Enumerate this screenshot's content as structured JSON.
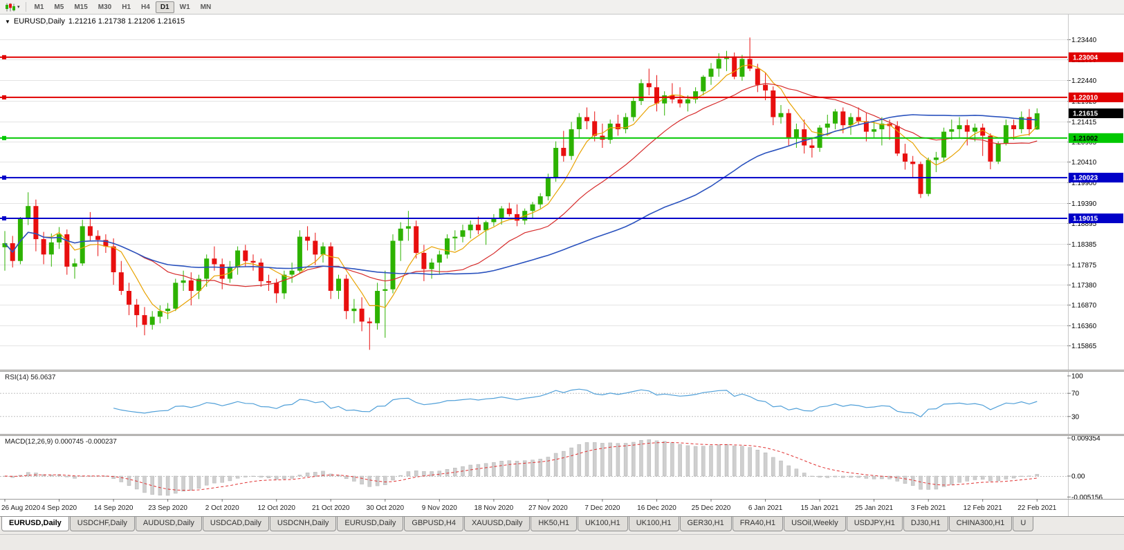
{
  "toolbar": {
    "timeframes": [
      "M1",
      "M5",
      "M15",
      "M30",
      "H1",
      "H4",
      "D1",
      "W1",
      "MN"
    ],
    "active_timeframe": "D1"
  },
  "chart": {
    "marker": "▼",
    "title": "EURUSD,Daily",
    "ohlc": "1.21216 1.21738 1.21206 1.21615"
  },
  "indicators": {
    "rsi": {
      "label": "RSI(14) 56.0637",
      "period": 14,
      "value": 56.0637
    },
    "macd": {
      "label": "MACD(12,26,9) 0.000745 -0.000237",
      "main": 0.000745,
      "signal": -0.000237
    }
  },
  "chart_data": {
    "type": "candlestick",
    "symbol": "EURUSD",
    "period": "Daily",
    "last": {
      "open": 1.21216,
      "high": 1.21738,
      "low": 1.21206,
      "close": 1.21615
    },
    "current_price_label": "1.21615",
    "price_axis": {
      "top": 1.2406,
      "bottom": 1.1527,
      "ticks": [
        1.2344,
        1.2295,
        1.2244,
        1.21925,
        1.21415,
        1.20905,
        1.2041,
        1.199,
        1.1939,
        1.18895,
        1.18385,
        1.17875,
        1.1738,
        1.1687,
        1.1636,
        1.15865
      ],
      "tick_labels": [
        "1.23440",
        "1.22950",
        "1.22440",
        "1.21925",
        "1.21415",
        "1.20905",
        "1.20410",
        "1.19900",
        "1.19390",
        "1.18895",
        "1.18385",
        "1.17875",
        "1.17380",
        "1.16870",
        "1.16360",
        "1.15865"
      ]
    },
    "hlines": [
      {
        "price": 1.23004,
        "label": "1.23004",
        "color": "#e00000",
        "text_color": "#ffffff"
      },
      {
        "price": 1.2201,
        "label": "1.22010",
        "color": "#e00000",
        "text_color": "#ffffff"
      },
      {
        "price": 1.21002,
        "label": "1.21002",
        "color": "#00c800",
        "text_color": "#000000"
      },
      {
        "price": 1.20023,
        "label": "1.20023",
        "color": "#0000c8",
        "text_color": "#ffffff"
      },
      {
        "price": 1.19015,
        "label": "1.19015",
        "color": "#0000c8",
        "text_color": "#ffffff"
      }
    ],
    "moving_averages": [
      {
        "name": "fast",
        "window": 6,
        "color": "#e8a200"
      },
      {
        "name": "mid",
        "window": 18,
        "color": "#d62a2a"
      },
      {
        "name": "slow",
        "window": 48,
        "color": "#2a52be"
      }
    ],
    "rsi_axis": [
      {
        "v": 100,
        "label": "100"
      },
      {
        "v": 70,
        "label": "70"
      },
      {
        "v": 30,
        "label": "30"
      }
    ],
    "rsi_levels": [
      70,
      30
    ],
    "macd_axis": [
      {
        "v": 0.009354,
        "label": "0.009354"
      },
      {
        "v": 0,
        "label": "0.00"
      },
      {
        "v": -0.005156,
        "label": "-0.005156"
      }
    ],
    "colors": {
      "up": "#2db200",
      "down": "#e80f0f",
      "grid": "#e3e3e3",
      "rsi_line": "#4f9fd8",
      "macd_hist": "#cfcfcf",
      "macd_hist_stroke": "#b4b4b4",
      "macd_signal": "#e03030",
      "current_price_bg": "#000000",
      "current_price_text": "#ffffff",
      "axis_text": "#000000",
      "date_text": "#222222"
    },
    "x_labels": [
      "26 Aug 2020",
      "4 Sep 2020",
      "14 Sep 2020",
      "23 Sep 2020",
      "2 Oct 2020",
      "12 Oct 2020",
      "21 Oct 2020",
      "30 Oct 2020",
      "9 Nov 2020",
      "18 Nov 2020",
      "27 Nov 2020",
      "7 Dec 2020",
      "16 Dec 2020",
      "25 Dec 2020",
      "6 Jan 2021",
      "15 Jan 2021",
      "25 Jan 2021",
      "3 Feb 2021",
      "12 Feb 2021",
      "22 Feb 2021"
    ],
    "x_label_step": 7,
    "candles": [
      [
        1.183,
        1.187,
        1.1772,
        1.184
      ],
      [
        1.184,
        1.1858,
        1.178,
        1.1796
      ],
      [
        1.1796,
        1.1905,
        1.1788,
        1.19
      ],
      [
        1.19,
        1.1966,
        1.1885,
        1.1932
      ],
      [
        1.1932,
        1.1948,
        1.182,
        1.185
      ],
      [
        1.185,
        1.1868,
        1.1788,
        1.1812
      ],
      [
        1.1812,
        1.1864,
        1.1782,
        1.1842
      ],
      [
        1.1842,
        1.188,
        1.1826,
        1.1862
      ],
      [
        1.1862,
        1.1874,
        1.1762,
        1.1782
      ],
      [
        1.1782,
        1.1802,
        1.1752,
        1.179
      ],
      [
        1.179,
        1.1898,
        1.1784,
        1.1882
      ],
      [
        1.1882,
        1.1917,
        1.1846,
        1.1858
      ],
      [
        1.1858,
        1.1872,
        1.1808,
        1.1848
      ],
      [
        1.1848,
        1.1862,
        1.1816,
        1.1832
      ],
      [
        1.1832,
        1.1852,
        1.1737,
        1.1768
      ],
      [
        1.1768,
        1.1796,
        1.1712,
        1.1722
      ],
      [
        1.1722,
        1.1742,
        1.1662,
        1.1688
      ],
      [
        1.1688,
        1.1702,
        1.1632,
        1.1662
      ],
      [
        1.1662,
        1.1682,
        1.1612,
        1.1638
      ],
      [
        1.1638,
        1.1672,
        1.1626,
        1.1658
      ],
      [
        1.1658,
        1.1686,
        1.1642,
        1.1672
      ],
      [
        1.1672,
        1.1692,
        1.1652,
        1.1678
      ],
      [
        1.1678,
        1.1752,
        1.1672,
        1.1742
      ],
      [
        1.1742,
        1.1772,
        1.1722,
        1.1748
      ],
      [
        1.1748,
        1.1768,
        1.1686,
        1.1722
      ],
      [
        1.1722,
        1.1762,
        1.1702,
        1.1752
      ],
      [
        1.1752,
        1.1812,
        1.1732,
        1.1802
      ],
      [
        1.1802,
        1.1832,
        1.1772,
        1.1788
      ],
      [
        1.1788,
        1.1802,
        1.1726,
        1.1752
      ],
      [
        1.1752,
        1.1796,
        1.1742,
        1.1782
      ],
      [
        1.1782,
        1.1832,
        1.1762,
        1.1822
      ],
      [
        1.1822,
        1.1836,
        1.1782,
        1.1796
      ],
      [
        1.1796,
        1.1812,
        1.1772,
        1.1792
      ],
      [
        1.1792,
        1.1802,
        1.1732,
        1.1746
      ],
      [
        1.1746,
        1.1762,
        1.1722,
        1.1742
      ],
      [
        1.1742,
        1.1752,
        1.1692,
        1.1716
      ],
      [
        1.1716,
        1.1772,
        1.1702,
        1.1762
      ],
      [
        1.1762,
        1.1792,
        1.1742,
        1.1772
      ],
      [
        1.1772,
        1.1872,
        1.1766,
        1.1856
      ],
      [
        1.1856,
        1.1882,
        1.1822,
        1.1846
      ],
      [
        1.1846,
        1.1866,
        1.1786,
        1.1812
      ],
      [
        1.1812,
        1.1842,
        1.1792,
        1.1832
      ],
      [
        1.1832,
        1.1842,
        1.1702,
        1.1722
      ],
      [
        1.1722,
        1.1762,
        1.1702,
        1.1752
      ],
      [
        1.1752,
        1.1762,
        1.1652,
        1.1672
      ],
      [
        1.1672,
        1.1702,
        1.1642,
        1.1678
      ],
      [
        1.1678,
        1.1706,
        1.1622,
        1.1646
      ],
      [
        1.1646,
        1.1656,
        1.1576,
        1.1642
      ],
      [
        1.1642,
        1.1742,
        1.1626,
        1.1722
      ],
      [
        1.1722,
        1.1772,
        1.1606,
        1.1726
      ],
      [
        1.1726,
        1.1862,
        1.1716,
        1.1846
      ],
      [
        1.1846,
        1.1892,
        1.1796,
        1.1876
      ],
      [
        1.1876,
        1.192,
        1.1846,
        1.1882
      ],
      [
        1.1882,
        1.1896,
        1.1802,
        1.1816
      ],
      [
        1.1816,
        1.1836,
        1.1746,
        1.1776
      ],
      [
        1.1776,
        1.1802,
        1.1752,
        1.1792
      ],
      [
        1.1792,
        1.1822,
        1.1762,
        1.1812
      ],
      [
        1.1812,
        1.1862,
        1.1802,
        1.1852
      ],
      [
        1.1852,
        1.1872,
        1.1822,
        1.1856
      ],
      [
        1.1856,
        1.1886,
        1.1842,
        1.1872
      ],
      [
        1.1872,
        1.1896,
        1.1852,
        1.1886
      ],
      [
        1.1886,
        1.1906,
        1.1862,
        1.1872
      ],
      [
        1.1872,
        1.1896,
        1.1836,
        1.1892
      ],
      [
        1.1892,
        1.1912,
        1.1882,
        1.1902
      ],
      [
        1.1902,
        1.1932,
        1.1886,
        1.1926
      ],
      [
        1.1926,
        1.194,
        1.1906,
        1.1912
      ],
      [
        1.1912,
        1.1936,
        1.1882,
        1.1896
      ],
      [
        1.1896,
        1.1926,
        1.1886,
        1.192
      ],
      [
        1.192,
        1.1942,
        1.1902,
        1.1936
      ],
      [
        1.1936,
        1.1964,
        1.1926,
        1.1956
      ],
      [
        1.1956,
        1.2012,
        1.1946,
        1.2002
      ],
      [
        1.2002,
        1.2092,
        1.1992,
        1.2076
      ],
      [
        1.2076,
        1.2118,
        1.2042,
        1.2056
      ],
      [
        1.2056,
        1.214,
        1.2046,
        1.2122
      ],
      [
        1.2122,
        1.2162,
        1.2102,
        1.2152
      ],
      [
        1.2152,
        1.2176,
        1.2122,
        1.2142
      ],
      [
        1.2142,
        1.2166,
        1.2092,
        1.2106
      ],
      [
        1.2106,
        1.2136,
        1.2076,
        1.2096
      ],
      [
        1.2096,
        1.2146,
        1.2086,
        1.2136
      ],
      [
        1.2136,
        1.2158,
        1.2106,
        1.2122
      ],
      [
        1.2122,
        1.2162,
        1.2112,
        1.2152
      ],
      [
        1.2152,
        1.22,
        1.2142,
        1.2192
      ],
      [
        1.2192,
        1.2246,
        1.2182,
        1.2236
      ],
      [
        1.2236,
        1.2272,
        1.2206,
        1.2226
      ],
      [
        1.2226,
        1.2256,
        1.2166,
        1.2186
      ],
      [
        1.2186,
        1.2216,
        1.2156,
        1.2206
      ],
      [
        1.2206,
        1.2236,
        1.2186,
        1.2196
      ],
      [
        1.2196,
        1.2226,
        1.2176,
        1.2186
      ],
      [
        1.2186,
        1.2206,
        1.2166,
        1.2196
      ],
      [
        1.2196,
        1.2226,
        1.2186,
        1.2216
      ],
      [
        1.2216,
        1.2256,
        1.2206,
        1.2252
      ],
      [
        1.2252,
        1.2286,
        1.2232,
        1.2272
      ],
      [
        1.2272,
        1.231,
        1.2252,
        1.2296
      ],
      [
        1.2296,
        1.2316,
        1.2266,
        1.2302
      ],
      [
        1.2302,
        1.2312,
        1.2246,
        1.2252
      ],
      [
        1.2252,
        1.2306,
        1.2242,
        1.2296
      ],
      [
        1.2296,
        1.2349,
        1.2266,
        1.2272
      ],
      [
        1.2272,
        1.2284,
        1.2214,
        1.2232
      ],
      [
        1.2232,
        1.2262,
        1.2194,
        1.2218
      ],
      [
        1.2218,
        1.2228,
        1.2132,
        1.2152
      ],
      [
        1.2152,
        1.2182,
        1.2136,
        1.2162
      ],
      [
        1.2162,
        1.2172,
        1.2082,
        1.2102
      ],
      [
        1.2102,
        1.2136,
        1.2076,
        1.2122
      ],
      [
        1.2122,
        1.2146,
        1.2062,
        1.2082
      ],
      [
        1.2082,
        1.2102,
        1.2052,
        1.2076
      ],
      [
        1.2076,
        1.2132,
        1.2066,
        1.2126
      ],
      [
        1.2126,
        1.2158,
        1.2106,
        1.2136
      ],
      [
        1.2136,
        1.2172,
        1.2122,
        1.2166
      ],
      [
        1.2166,
        1.2176,
        1.2112,
        1.2132
      ],
      [
        1.2132,
        1.2162,
        1.2108,
        1.2152
      ],
      [
        1.2152,
        1.2176,
        1.2132,
        1.2142
      ],
      [
        1.2142,
        1.2162,
        1.2092,
        1.2116
      ],
      [
        1.2116,
        1.2142,
        1.2102,
        1.2122
      ],
      [
        1.2122,
        1.2152,
        1.2082,
        1.2136
      ],
      [
        1.2136,
        1.2146,
        1.2096,
        1.213
      ],
      [
        1.213,
        1.2142,
        1.2056,
        1.2062
      ],
      [
        1.2062,
        1.2086,
        1.2022,
        1.2042
      ],
      [
        1.2042,
        1.2056,
        1.2002,
        1.2036
      ],
      [
        1.2036,
        1.2042,
        1.1952,
        1.1962
      ],
      [
        1.1962,
        1.2052,
        1.1956,
        1.2046
      ],
      [
        1.2046,
        1.2066,
        1.2016,
        1.2052
      ],
      [
        1.2052,
        1.2126,
        1.2042,
        1.2116
      ],
      [
        1.2116,
        1.2146,
        1.2096,
        1.2122
      ],
      [
        1.2122,
        1.2152,
        1.2102,
        1.2132
      ],
      [
        1.2132,
        1.2146,
        1.2082,
        1.2116
      ],
      [
        1.2116,
        1.2136,
        1.2092,
        1.2126
      ],
      [
        1.2126,
        1.2136,
        1.2056,
        1.2106
      ],
      [
        1.2106,
        1.2112,
        1.2023,
        1.2042
      ],
      [
        1.2042,
        1.2092,
        1.2036,
        1.2086
      ],
      [
        1.2086,
        1.2146,
        1.2082,
        1.2132
      ],
      [
        1.2132,
        1.2146,
        1.2096,
        1.2122
      ],
      [
        1.2122,
        1.2166,
        1.2112,
        1.2152
      ],
      [
        1.2152,
        1.2172,
        1.2106,
        1.2122
      ],
      [
        1.21216,
        1.21738,
        1.21206,
        1.21615
      ]
    ]
  },
  "tabs": [
    {
      "label": "EURUSD,Daily",
      "active": true
    },
    {
      "label": "USDCHF,Daily"
    },
    {
      "label": "AUDUSD,Daily"
    },
    {
      "label": "USDCAD,Daily"
    },
    {
      "label": "USDCNH,Daily"
    },
    {
      "label": "EURUSD,Daily"
    },
    {
      "label": "GBPUSD,H4"
    },
    {
      "label": "XAUUSD,Daily"
    },
    {
      "label": "HK50,H1"
    },
    {
      "label": "UK100,H1"
    },
    {
      "label": "UK100,H1"
    },
    {
      "label": "GER30,H1"
    },
    {
      "label": "FRA40,H1"
    },
    {
      "label": "USOil,Weekly"
    },
    {
      "label": "USDJPY,H1"
    },
    {
      "label": "DJ30,H1"
    },
    {
      "label": "CHINA300,H1"
    },
    {
      "label": "U"
    }
  ]
}
